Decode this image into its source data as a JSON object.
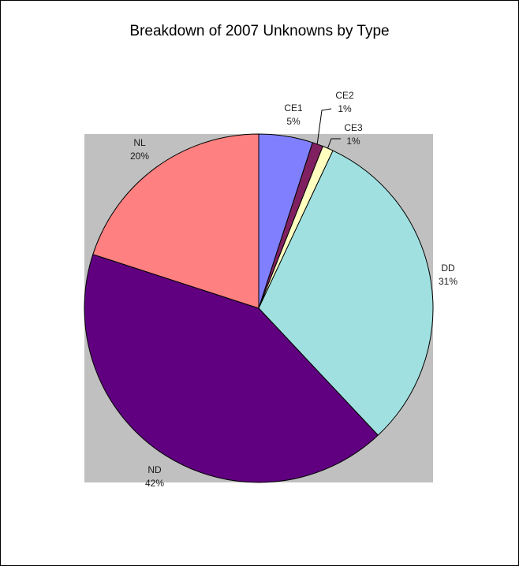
{
  "chart_data": {
    "type": "pie",
    "title": "Breakdown of 2007 Unknowns by Type",
    "categories": [
      "CE1",
      "CE2",
      "CE3",
      "DD",
      "ND",
      "NL"
    ],
    "values": [
      5,
      1,
      1,
      31,
      42,
      20
    ],
    "value_labels": [
      "5%",
      "1%",
      "1%",
      "31%",
      "42%",
      "20%"
    ],
    "colors": [
      "#8080ff",
      "#802060",
      "#ffffc0",
      "#a0e0e0",
      "#600080",
      "#ff8080"
    ]
  }
}
